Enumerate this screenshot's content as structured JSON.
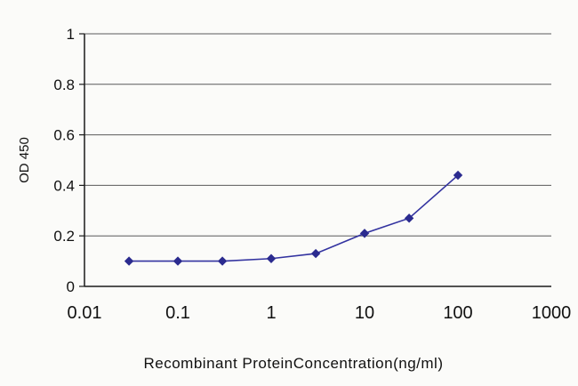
{
  "figure": {
    "background": "#fbfbf9"
  },
  "chart_data": {
    "type": "line",
    "title": "",
    "xlabel": "Recombinant ProteinConcentration(ng/ml)",
    "ylabel": "OD 450",
    "x_scale": "log",
    "xlim": [
      0.01,
      1000
    ],
    "ylim": [
      0,
      1
    ],
    "x": [
      0.03,
      0.1,
      0.3,
      1,
      3,
      10,
      30,
      100
    ],
    "values": [
      0.1,
      0.1,
      0.1,
      0.11,
      0.13,
      0.21,
      0.27,
      0.44
    ],
    "x_ticks": [
      0.01,
      0.1,
      1,
      10,
      100,
      1000
    ],
    "x_tick_labels": [
      "0.01",
      "0.1",
      "1",
      "10",
      "100",
      "1000"
    ],
    "y_ticks": [
      0,
      0.2,
      0.4,
      0.6,
      0.8,
      1
    ],
    "y_tick_labels": [
      "0",
      "0.2",
      "0.4",
      "0.6",
      "0.8",
      "1"
    ],
    "grid": "horizontal",
    "legend": "none",
    "marker": "diamond",
    "line_color": "#3333a0",
    "marker_color": "#2b2b8f",
    "axis_color": "#1a1a1a",
    "grid_color": "#5a5a5a",
    "text_color": "#111111"
  }
}
